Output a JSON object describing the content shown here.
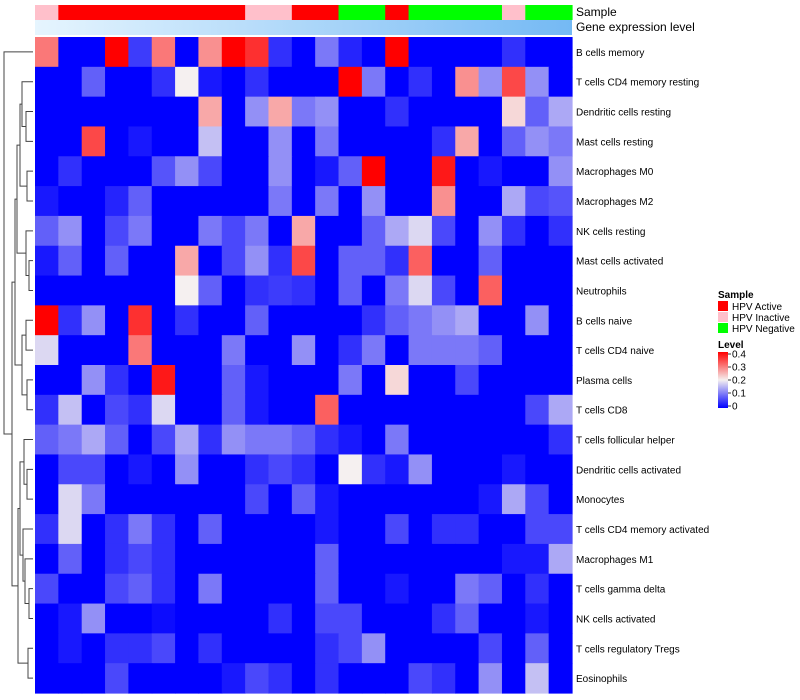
{
  "chart_data": {
    "type": "heatmap",
    "annotation_rows": [
      {
        "label": "Sample",
        "values": [
          "HPV Inactive",
          "HPV Active",
          "HPV Active",
          "HPV Active",
          "HPV Active",
          "HPV Active",
          "HPV Active",
          "HPV Active",
          "HPV Active",
          "HPV Inactive",
          "HPV Inactive",
          "HPV Active",
          "HPV Active",
          "HPV Negative",
          "HPV Negative",
          "HPV Active",
          "HPV Negative",
          "HPV Negative",
          "HPV Negative",
          "HPV Negative",
          "HPV Inactive",
          "HPV Negative",
          "HPV Negative"
        ]
      },
      {
        "label": "Gene expression level",
        "values": [
          0.0,
          0.05,
          0.1,
          0.14,
          0.18,
          0.23,
          0.27,
          0.32,
          0.36,
          0.41,
          0.45,
          0.5,
          0.55,
          0.59,
          0.64,
          0.68,
          0.73,
          0.77,
          0.82,
          0.86,
          0.91,
          0.95,
          1.0
        ]
      }
    ],
    "rows": [
      "B cells memory",
      "T cells CD4 memory resting",
      "Dendritic cells resting",
      "Mast cells resting",
      "Macrophages M0",
      "Macrophages M2",
      "NK cells resting",
      "Mast cells activated",
      "Neutrophils",
      "B cells naive",
      "T cells CD4 naive",
      "Plasma cells",
      "T cells CD8",
      "T cells follicular helper",
      "Dendritic cells activated",
      "Monocytes",
      "T cells CD4 memory activated",
      "Macrophages M1",
      "T cells gamma delta",
      "NK cells activated",
      "T cells regulatory  Tregs",
      "Eosinophils"
    ],
    "values": [
      [
        0.3,
        0.0,
        0.0,
        0.4,
        0.05,
        0.3,
        0.0,
        0.28,
        0.4,
        0.36,
        0.04,
        0.0,
        0.1,
        0.03,
        0.0,
        0.4,
        0.0,
        0.0,
        0.0,
        0.0,
        0.04,
        0.0,
        0.0
      ],
      [
        0.0,
        0.0,
        0.08,
        0.0,
        0.0,
        0.04,
        0.2,
        0.02,
        0.0,
        0.04,
        0.0,
        0.0,
        0.0,
        0.4,
        0.1,
        0.0,
        0.04,
        0.0,
        0.28,
        0.12,
        0.34,
        0.12,
        0.0
      ],
      [
        0.0,
        0.0,
        0.0,
        0.0,
        0.0,
        0.0,
        0.0,
        0.26,
        0.0,
        0.12,
        0.26,
        0.1,
        0.12,
        0.0,
        0.0,
        0.04,
        0.0,
        0.0,
        0.0,
        0.0,
        0.22,
        0.08,
        0.14
      ],
      [
        0.0,
        0.0,
        0.34,
        0.0,
        0.02,
        0.0,
        0.0,
        0.16,
        0.0,
        0.0,
        0.12,
        0.0,
        0.1,
        0.0,
        0.0,
        0.0,
        0.0,
        0.04,
        0.26,
        0.0,
        0.08,
        0.12,
        0.1
      ],
      [
        0.0,
        0.04,
        0.0,
        0.0,
        0.0,
        0.07,
        0.12,
        0.06,
        0.0,
        0.0,
        0.12,
        0.0,
        0.02,
        0.08,
        0.4,
        0.0,
        0.0,
        0.38,
        0.0,
        0.02,
        0.0,
        0.0,
        0.12
      ],
      [
        0.02,
        0.0,
        0.0,
        0.03,
        0.08,
        0.0,
        0.0,
        0.0,
        0.0,
        0.0,
        0.1,
        0.0,
        0.1,
        0.0,
        0.12,
        0.0,
        0.0,
        0.28,
        0.0,
        0.0,
        0.14,
        0.06,
        0.07
      ],
      [
        0.08,
        0.12,
        0.0,
        0.06,
        0.1,
        0.0,
        0.0,
        0.1,
        0.06,
        0.1,
        0.0,
        0.26,
        0.0,
        0.0,
        0.08,
        0.14,
        0.18,
        0.06,
        0.0,
        0.12,
        0.04,
        0.0,
        0.04
      ],
      [
        0.02,
        0.08,
        0.0,
        0.08,
        0.0,
        0.0,
        0.26,
        0.0,
        0.06,
        0.12,
        0.04,
        0.34,
        0.0,
        0.08,
        0.08,
        0.04,
        0.32,
        0.0,
        0.0,
        0.08,
        0.0,
        0.0,
        0.0
      ],
      [
        0.0,
        0.0,
        0.0,
        0.0,
        0.0,
        0.0,
        0.2,
        0.08,
        0.0,
        0.04,
        0.05,
        0.04,
        0.0,
        0.08,
        0.0,
        0.1,
        0.18,
        0.06,
        0.0,
        0.32,
        0.0,
        0.0,
        0.0
      ],
      [
        0.4,
        0.04,
        0.12,
        0.0,
        0.36,
        0.0,
        0.04,
        0.0,
        0.0,
        0.08,
        0.0,
        0.0,
        0.0,
        0.0,
        0.04,
        0.08,
        0.1,
        0.12,
        0.14,
        0.0,
        0.0,
        0.12,
        0.0
      ],
      [
        0.18,
        0.0,
        0.0,
        0.0,
        0.3,
        0.0,
        0.0,
        0.0,
        0.1,
        0.0,
        0.0,
        0.12,
        0.0,
        0.04,
        0.1,
        0.0,
        0.1,
        0.1,
        0.1,
        0.08,
        0.0,
        0.0,
        0.0
      ],
      [
        0.0,
        0.0,
        0.12,
        0.04,
        0.0,
        0.38,
        0.0,
        0.0,
        0.08,
        0.02,
        0.0,
        0.0,
        0.0,
        0.1,
        0.0,
        0.22,
        0.0,
        0.0,
        0.06,
        0.0,
        0.0,
        0.0,
        0.0
      ],
      [
        0.04,
        0.16,
        0.0,
        0.06,
        0.04,
        0.18,
        0.0,
        0.0,
        0.08,
        0.02,
        0.0,
        0.0,
        0.32,
        0.0,
        0.0,
        0.0,
        0.0,
        0.0,
        0.0,
        0.0,
        0.0,
        0.06,
        0.14
      ],
      [
        0.08,
        0.1,
        0.14,
        0.08,
        0.0,
        0.06,
        0.14,
        0.04,
        0.12,
        0.1,
        0.1,
        0.08,
        0.04,
        0.02,
        0.0,
        0.1,
        0.0,
        0.0,
        0.0,
        0.0,
        0.0,
        0.0,
        0.04
      ],
      [
        0.0,
        0.06,
        0.06,
        0.0,
        0.02,
        0.0,
        0.12,
        0.0,
        0.0,
        0.04,
        0.06,
        0.04,
        0.0,
        0.2,
        0.04,
        0.02,
        0.12,
        0.0,
        0.0,
        0.0,
        0.02,
        0.0,
        0.0
      ],
      [
        0.0,
        0.18,
        0.1,
        0.0,
        0.0,
        0.0,
        0.0,
        0.0,
        0.0,
        0.06,
        0.0,
        0.08,
        0.02,
        0.0,
        0.0,
        0.0,
        0.0,
        0.0,
        0.0,
        0.02,
        0.14,
        0.06,
        0.0
      ],
      [
        0.04,
        0.18,
        0.0,
        0.04,
        0.1,
        0.04,
        0.0,
        0.08,
        0.0,
        0.0,
        0.0,
        0.0,
        0.02,
        0.0,
        0.0,
        0.06,
        0.0,
        0.04,
        0.04,
        0.0,
        0.0,
        0.06,
        0.06
      ],
      [
        0.0,
        0.08,
        0.0,
        0.04,
        0.06,
        0.04,
        0.0,
        0.0,
        0.0,
        0.0,
        0.0,
        0.0,
        0.08,
        0.0,
        0.0,
        0.0,
        0.0,
        0.0,
        0.0,
        0.0,
        0.02,
        0.02,
        0.14
      ],
      [
        0.06,
        0.0,
        0.0,
        0.06,
        0.08,
        0.04,
        0.0,
        0.1,
        0.0,
        0.0,
        0.0,
        0.0,
        0.08,
        0.0,
        0.0,
        0.02,
        0.0,
        0.0,
        0.1,
        0.08,
        0.0,
        0.04,
        0.0
      ],
      [
        0.0,
        0.02,
        0.12,
        0.0,
        0.0,
        0.01,
        0.0,
        0.0,
        0.0,
        0.0,
        0.04,
        0.0,
        0.06,
        0.06,
        0.0,
        0.0,
        0.0,
        0.04,
        0.08,
        0.0,
        0.0,
        0.02,
        0.0
      ],
      [
        0.0,
        0.02,
        0.0,
        0.04,
        0.04,
        0.06,
        0.0,
        0.04,
        0.0,
        0.0,
        0.0,
        0.0,
        0.04,
        0.06,
        0.12,
        0.0,
        0.0,
        0.0,
        0.0,
        0.06,
        0.0,
        0.08,
        0.0
      ],
      [
        0.0,
        0.0,
        0.0,
        0.06,
        0.0,
        0.0,
        0.0,
        0.0,
        0.02,
        0.06,
        0.04,
        0.0,
        0.04,
        0.0,
        0.0,
        0.0,
        0.06,
        0.04,
        0.0,
        0.12,
        0.0,
        0.16,
        0.0
      ]
    ],
    "color_scale": {
      "stops": [
        0,
        0.2,
        0.4
      ],
      "colors": [
        "#0000ff",
        "#f5f0f0",
        "#ff0000"
      ]
    },
    "legend": {
      "sample_title": "Sample",
      "sample_items": [
        {
          "label": "HPV Active",
          "color": "#ff0000"
        },
        {
          "label": "HPV Inactive",
          "color": "#ffc0cb"
        },
        {
          "label": "HPV Negative",
          "color": "#00ff00"
        }
      ],
      "level_title": "Level",
      "level_ticks": [
        "0.4",
        "0.3",
        "0.2",
        "0.1",
        "0"
      ]
    },
    "gene_annotation_colors": [
      "#e6f5fe",
      "#74b9f4"
    ]
  }
}
